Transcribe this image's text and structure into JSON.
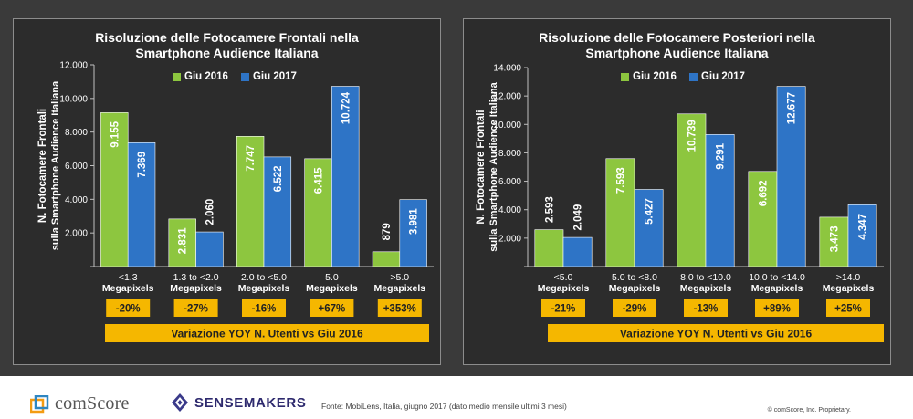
{
  "chart_data": [
    {
      "type": "bar",
      "title_line1": "Risoluzione delle Fotocamere Frontali nella",
      "title_line2": "Smartphone Audience Italiana",
      "ylabel_line1": "N. Fotocamere Frontali",
      "ylabel_line2": "sulla Smartphone Audience Italiana",
      "ylim": [
        0,
        12000
      ],
      "yticks": [
        0,
        2000,
        4000,
        6000,
        8000,
        10000,
        12000
      ],
      "ytick_labels": [
        "-",
        "2.000",
        "4.000",
        "6.000",
        "8.000",
        "10.000",
        "12.000"
      ],
      "categories": [
        [
          "<1.3",
          "Megapixels"
        ],
        [
          "1.3 to <2.0",
          "Megapixels"
        ],
        [
          "2.0 to <5.0",
          "Megapixels"
        ],
        [
          "5.0",
          "Megapixels"
        ],
        [
          ">5.0",
          "Megapixels"
        ]
      ],
      "series": [
        {
          "name": "Giu 2016",
          "color": "#8dc63f",
          "values": [
            9155,
            2831,
            7747,
            6415,
            879
          ],
          "labels": [
            "9.155",
            "2.831",
            "7.747",
            "6.415",
            "879"
          ]
        },
        {
          "name": "Giu 2017",
          "color": "#2e74c6",
          "values": [
            7369,
            2060,
            6522,
            10724,
            3981
          ],
          "labels": [
            "7.369",
            "2.060",
            "6.522",
            "10.724",
            "3.981"
          ]
        }
      ],
      "yoy": [
        "-20%",
        "-27%",
        "-16%",
        "+67%",
        "+353%"
      ],
      "yoy_caption": "Variazione YOY N. Utenti vs Giu 2016"
    },
    {
      "type": "bar",
      "title_line1": "Risoluzione delle Fotocamere Posteriori nella",
      "title_line2": "Smartphone Audience Italiana",
      "ylabel_line1": "N. Fotocamere Frontali",
      "ylabel_line2": "sulla Smartphone Audience Italiana",
      "ylim": [
        0,
        14000
      ],
      "yticks": [
        0,
        2000,
        4000,
        6000,
        8000,
        10000,
        12000,
        14000
      ],
      "ytick_labels": [
        "-",
        "2.000",
        "4.000",
        "6.000",
        "8.000",
        "10.000",
        "12.000",
        "14.000"
      ],
      "categories": [
        [
          "<5.0",
          "Megapixels"
        ],
        [
          "5.0 to <8.0",
          "Megapixels"
        ],
        [
          "8.0 to <10.0",
          "Megapixels"
        ],
        [
          "10.0 to <14.0",
          "Megapixels"
        ],
        [
          ">14.0",
          "Megapixels"
        ]
      ],
      "series": [
        {
          "name": "Giu 2016",
          "color": "#8dc63f",
          "values": [
            2593,
            7593,
            10739,
            6692,
            3473
          ],
          "labels": [
            "2.593",
            "7.593",
            "10.739",
            "6.692",
            "3.473"
          ]
        },
        {
          "name": "Giu 2017",
          "color": "#2e74c6",
          "values": [
            2049,
            5427,
            9291,
            12677,
            4347
          ],
          "labels": [
            "2.049",
            "5.427",
            "9.291",
            "12.677",
            "4.347"
          ]
        }
      ],
      "yoy": [
        "-21%",
        "-29%",
        "-13%",
        "+89%",
        "+25%"
      ],
      "yoy_caption": "Variazione YOY N. Utenti vs Giu 2016"
    }
  ],
  "footer": {
    "logo1": "comScore",
    "logo2": "SENSEMAKERS",
    "source": "Fonte: MobiLens, Italia, giugno 2017 (dato medio mensile ultimi 3 mesi)",
    "copyright": "© comScore, Inc. Proprietary."
  },
  "colors": {
    "background": "#3a3a3a",
    "panel": "#2c2c2c",
    "yoy_box": "#f5b700"
  }
}
